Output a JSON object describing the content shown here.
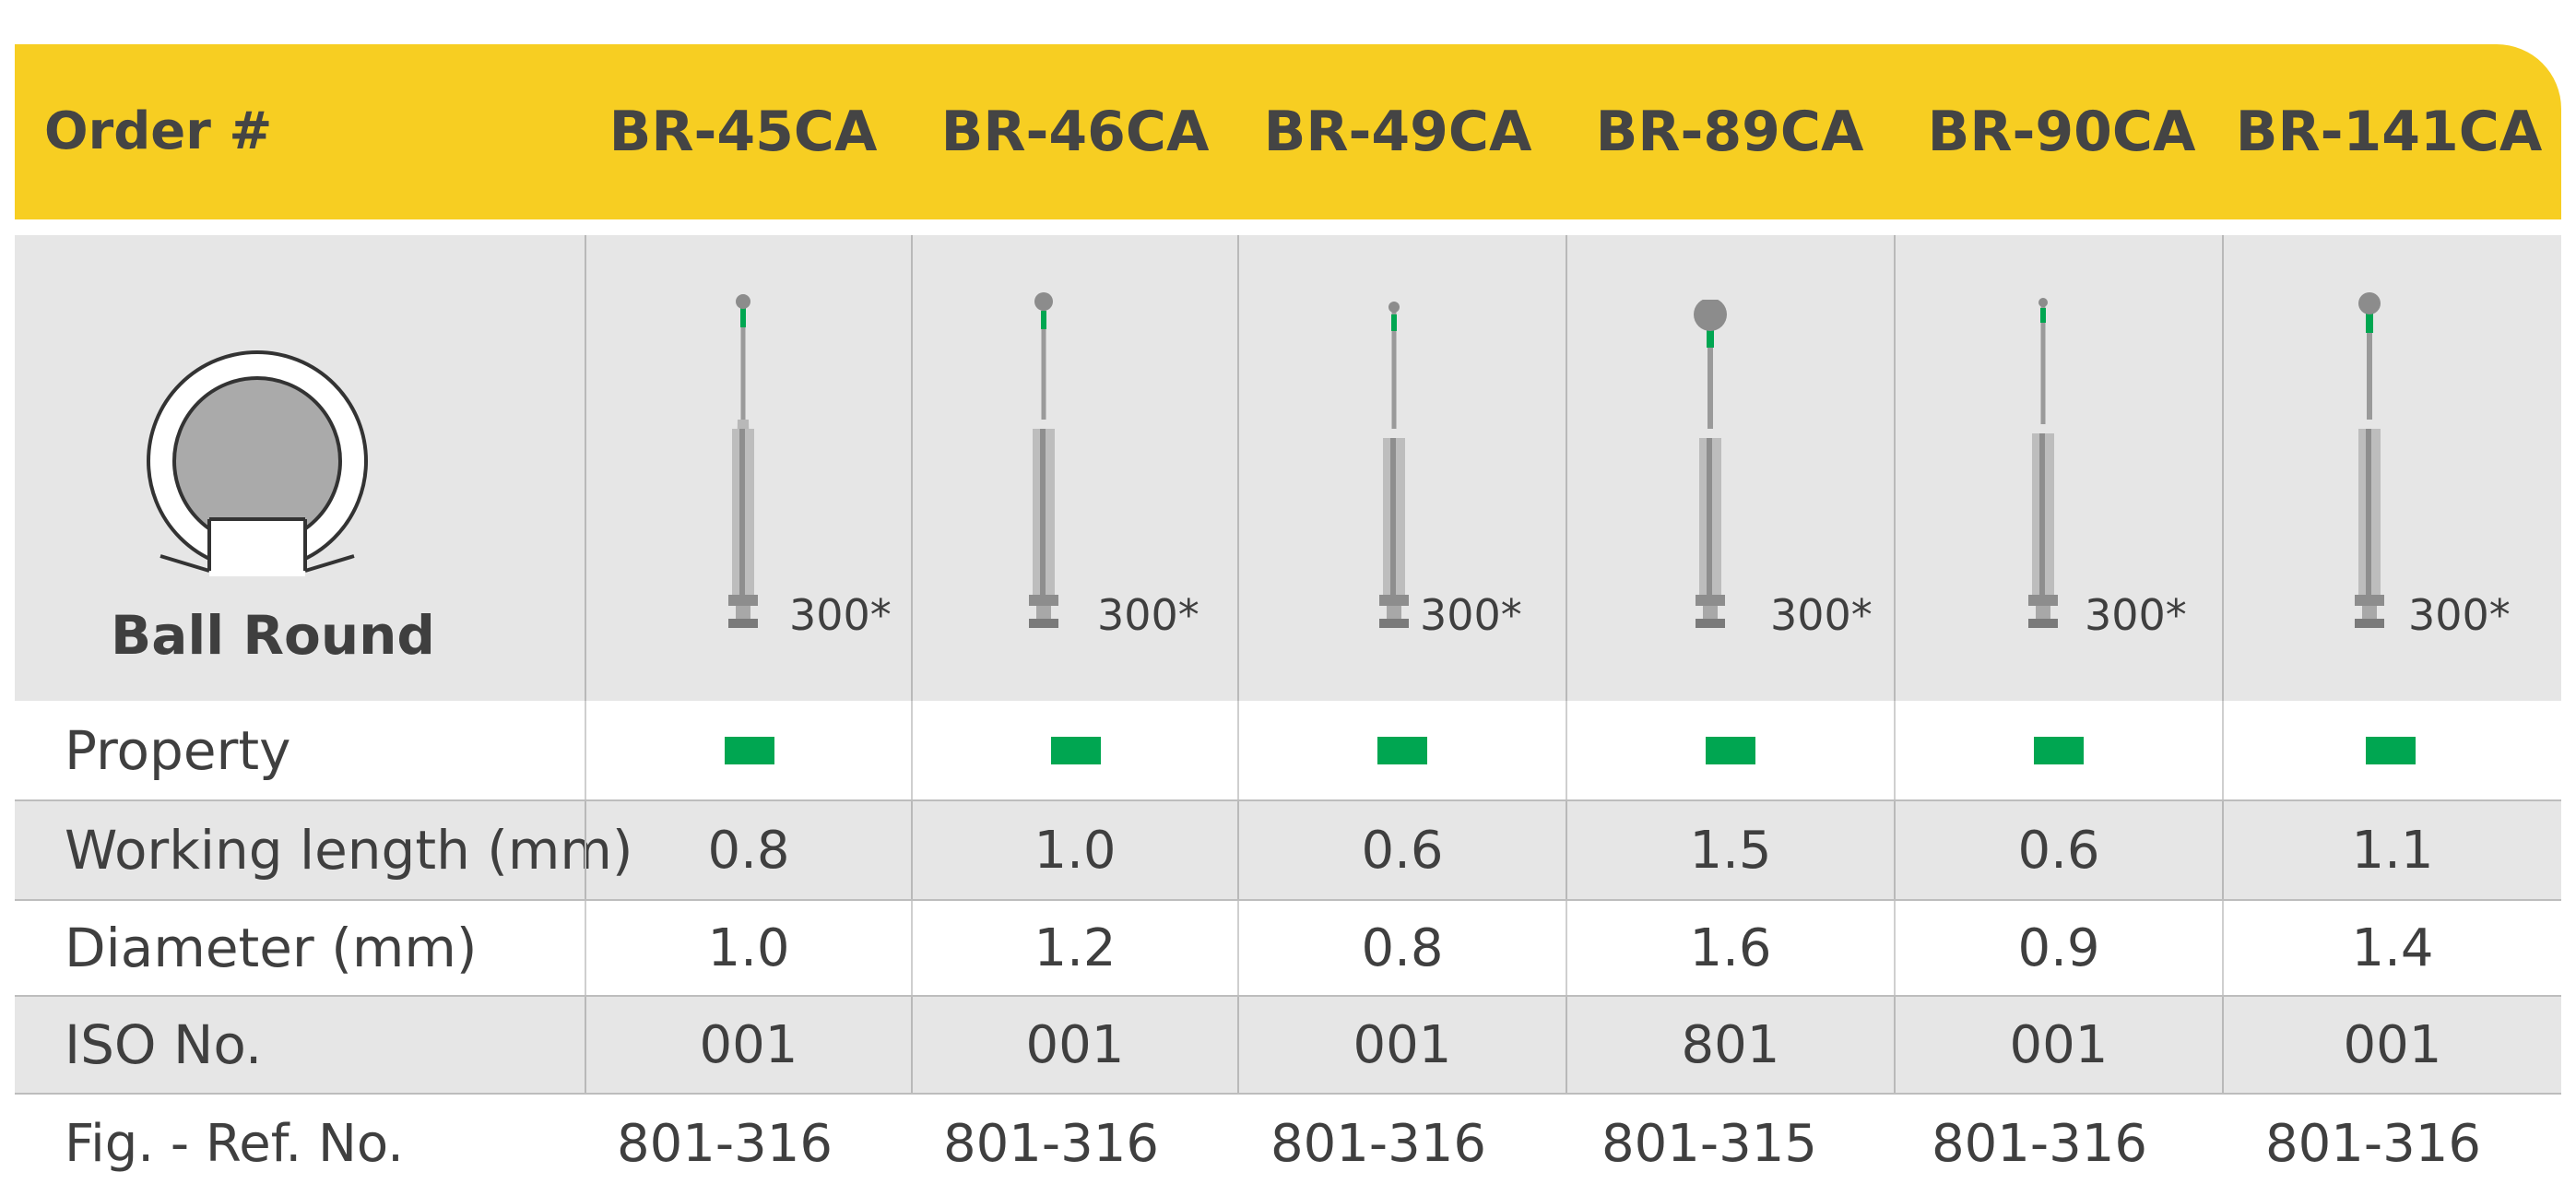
{
  "header": {
    "order_label": "Order #",
    "codes": [
      "BR-45CA",
      "BR-46CA",
      "BR-49CA",
      "BR-89CA",
      "BR-90CA",
      "BR-141CA"
    ]
  },
  "shape": {
    "name": "Ball Round",
    "icon": "ball-round-shape-icon"
  },
  "products": [
    {
      "count": "300*",
      "head": "tiny-ball",
      "band_color": "#00a651"
    },
    {
      "count": "300*",
      "head": "small-ball",
      "band_color": "#00a651"
    },
    {
      "count": "300*",
      "head": "tiny-ball",
      "band_color": "#00a651"
    },
    {
      "count": "300*",
      "head": "large-ball",
      "band_color": "#00a651"
    },
    {
      "count": "300*",
      "head": "tiny-ball",
      "band_color": "#00a651"
    },
    {
      "count": "300*",
      "head": "medium-ball",
      "band_color": "#00a651"
    }
  ],
  "rows": {
    "property": {
      "label": "Property",
      "swatch_color": "#00a651"
    },
    "working_length": {
      "label": "Working length (mm)",
      "values": [
        "0.8",
        "1.0",
        "0.6",
        "1.5",
        "0.6",
        "1.1"
      ]
    },
    "diameter": {
      "label": "Diameter (mm)",
      "values": [
        "1.0",
        "1.2",
        "0.8",
        "1.6",
        "0.9",
        "1.4"
      ]
    },
    "iso": {
      "label": "ISO No.",
      "values": [
        "001",
        "001",
        "001",
        "801",
        "001",
        "001"
      ]
    },
    "ref": {
      "label": "Fig. - Ref. No.",
      "values": [
        "801-316",
        "801-316",
        "801-316",
        "801-315",
        "801-316",
        "801-316"
      ]
    }
  },
  "colors": {
    "header_bg": "#f7ce22",
    "green": "#00a651",
    "gray_row": "#e6e6e6"
  }
}
